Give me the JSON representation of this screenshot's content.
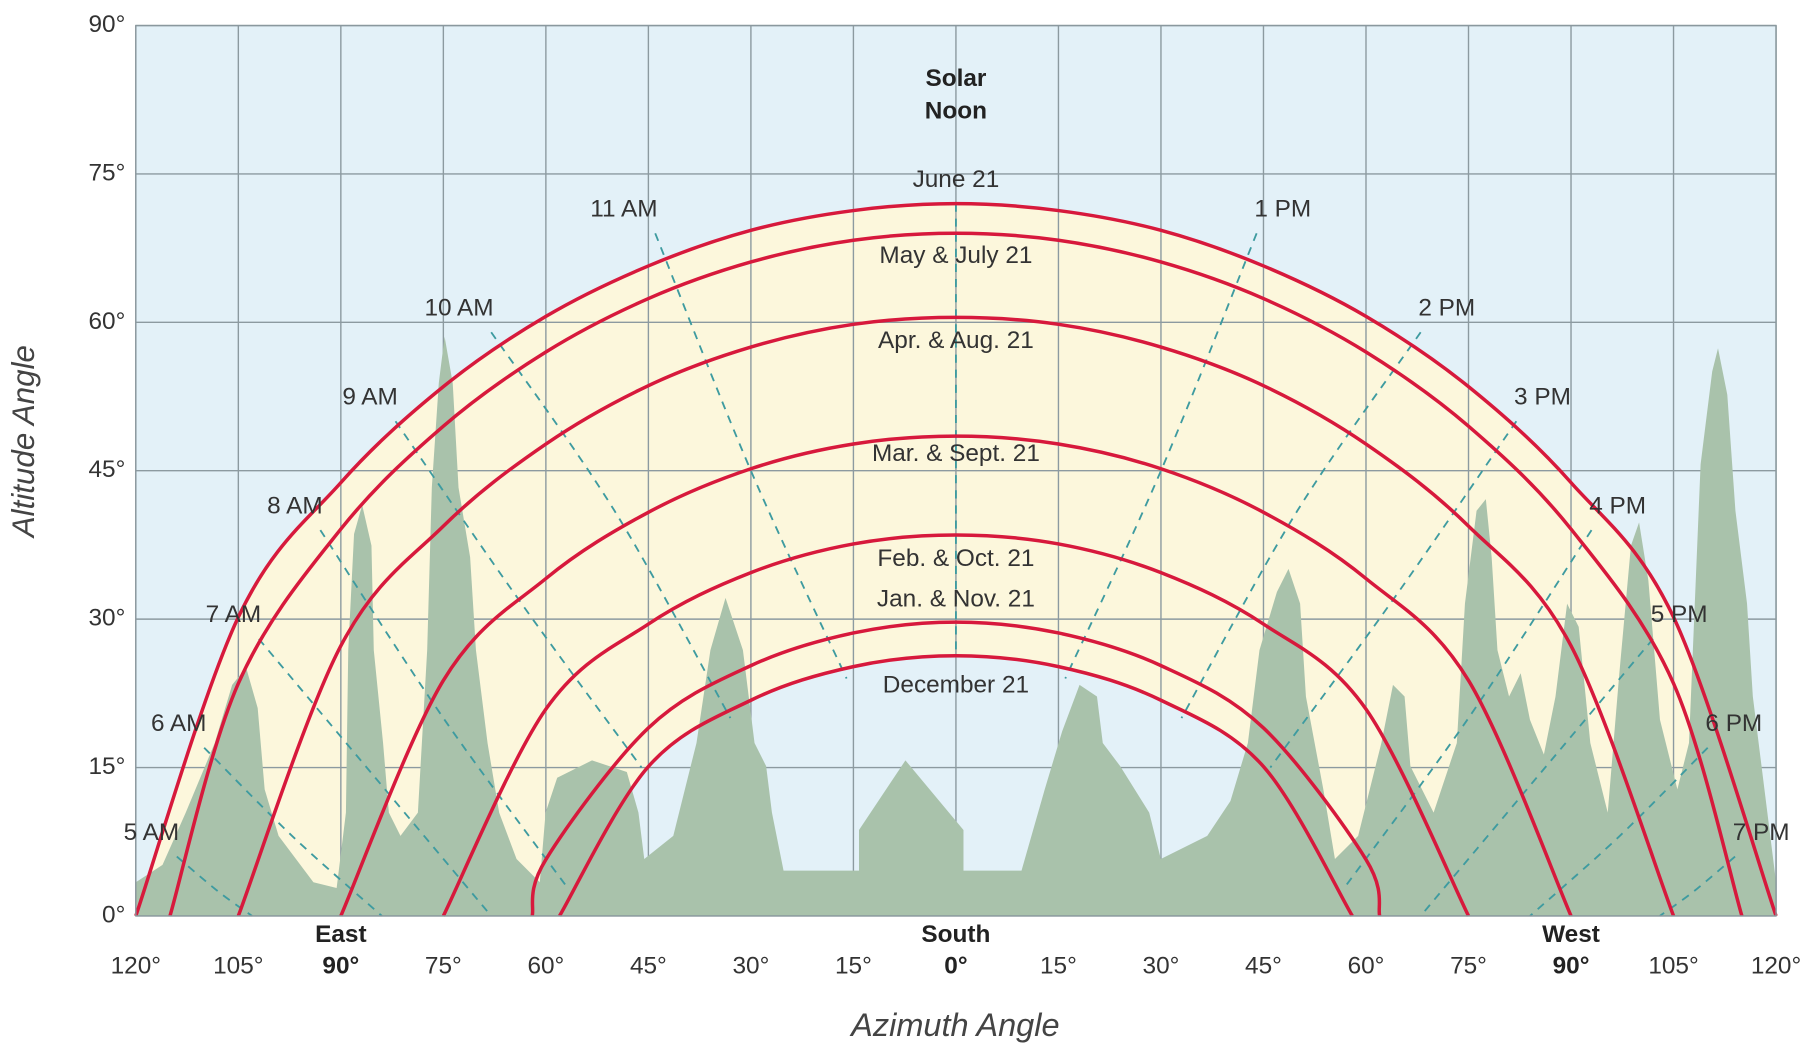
{
  "chart_data": {
    "type": "line",
    "x_label": "Azimuth Angle",
    "y_label": "Altitude Angle",
    "xlim": [
      -120,
      120
    ],
    "ylim": [
      0,
      90
    ],
    "xticks": [
      {
        "value": -120,
        "label": "120°"
      },
      {
        "value": -105,
        "label": "105°"
      },
      {
        "value": -90,
        "label": "90°"
      },
      {
        "value": -75,
        "label": "75°"
      },
      {
        "value": -60,
        "label": "60°"
      },
      {
        "value": -45,
        "label": "45°"
      },
      {
        "value": -30,
        "label": "30°"
      },
      {
        "value": -15,
        "label": "15°"
      },
      {
        "value": 0,
        "label": "0°"
      },
      {
        "value": 15,
        "label": "15°"
      },
      {
        "value": 30,
        "label": "30°"
      },
      {
        "value": 45,
        "label": "45°"
      },
      {
        "value": 60,
        "label": "60°"
      },
      {
        "value": 75,
        "label": "75°"
      },
      {
        "value": 90,
        "label": "90°"
      },
      {
        "value": 105,
        "label": "105°"
      },
      {
        "value": 120,
        "label": "120°"
      }
    ],
    "yticks": [
      {
        "value": 0,
        "label": "0°"
      },
      {
        "value": 15,
        "label": "15°"
      },
      {
        "value": 30,
        "label": "30°"
      },
      {
        "value": 45,
        "label": "45°"
      },
      {
        "value": 60,
        "label": "60°"
      },
      {
        "value": 75,
        "label": "75°"
      },
      {
        "value": 90,
        "label": "90°"
      }
    ],
    "x_annotations": [
      {
        "value": -90,
        "label": "East"
      },
      {
        "value": 0,
        "label": "South"
      },
      {
        "value": 90,
        "label": "West"
      }
    ],
    "grid": true,
    "series": [
      {
        "name": "June 21",
        "color": "#d7193c",
        "line_style": "solid",
        "x": [
          -120,
          -105,
          -90,
          -75,
          -60,
          -45,
          -30,
          -15,
          0,
          15,
          30,
          45,
          60,
          75,
          90,
          105,
          120
        ],
        "values": [
          0,
          30.2,
          43.8,
          53.5,
          60.6,
          65.7,
          69.3,
          71.3,
          72,
          71.3,
          69.3,
          65.7,
          60.6,
          53.5,
          43.8,
          30.2,
          0
        ]
      },
      {
        "name": "May & July 21",
        "color": "#d7193c",
        "line_style": "solid",
        "x": [
          -115,
          -105,
          -90,
          -75,
          -60,
          -45,
          -30,
          -15,
          0,
          15,
          30,
          45,
          60,
          75,
          90,
          105,
          115
        ],
        "values": [
          0,
          23.5,
          39.1,
          49.5,
          57,
          62.4,
          66.1,
          68.3,
          69,
          68.3,
          66.1,
          62.4,
          57,
          49.5,
          39.1,
          23.5,
          0
        ]
      },
      {
        "name": "Apr. & Aug. 21",
        "color": "#d7193c",
        "line_style": "solid",
        "x": [
          -105,
          -90,
          -75,
          -60,
          -45,
          -30,
          -15,
          0,
          15,
          30,
          45,
          60,
          75,
          90,
          105
        ],
        "values": [
          0,
          27.3,
          39.4,
          47.7,
          53.6,
          57.5,
          59.8,
          60.5,
          59.8,
          57.5,
          53.6,
          47.7,
          39.4,
          27.3,
          0
        ]
      },
      {
        "name": "Mar. & Sept. 21",
        "color": "#d7193c",
        "line_style": "solid",
        "x": [
          -90,
          -75,
          -60,
          -45,
          -30,
          -15,
          0,
          15,
          30,
          45,
          60,
          75,
          90
        ],
        "values": [
          0,
          23.8,
          34.1,
          40.8,
          45.2,
          47.7,
          48.5,
          47.7,
          45.2,
          40.8,
          34.1,
          23.8,
          0
        ]
      },
      {
        "name": "Feb. & Oct. 21",
        "color": "#d7193c",
        "line_style": "solid",
        "x": [
          -75,
          -60,
          -45,
          -30,
          -15,
          0,
          15,
          30,
          45,
          60,
          75
        ],
        "values": [
          0,
          20.9,
          29.5,
          34.7,
          37.6,
          38.5,
          37.6,
          34.7,
          29.5,
          20.9,
          0
        ]
      },
      {
        "name": "Jan. & Nov. 21",
        "color": "#d7193c",
        "line_style": "solid",
        "x": [
          -62,
          -60,
          -45,
          -30,
          -15,
          0,
          15,
          30,
          45,
          60,
          62
        ],
        "values": [
          0,
          5.7,
          19,
          25.3,
          28.6,
          29.7,
          28.6,
          25.3,
          19,
          5.7,
          0
        ]
      },
      {
        "name": "December 21",
        "color": "#d7193c",
        "line_style": "solid",
        "x": [
          -58,
          -45,
          -30,
          -15,
          0,
          15,
          30,
          45,
          58
        ],
        "values": [
          0,
          15.1,
          21.8,
          25.2,
          26.3,
          25.2,
          21.8,
          15.1,
          0
        ]
      },
      {
        "name": "5 AM",
        "color": "#3e9ba0",
        "line_style": "dashed",
        "x": [
          -114,
          -108,
          -103
        ],
        "values": [
          6,
          2.5,
          0
        ]
      },
      {
        "name": "6 AM",
        "color": "#3e9ba0",
        "line_style": "dashed",
        "x": [
          -110,
          -97,
          -84
        ],
        "values": [
          17,
          8,
          0
        ]
      },
      {
        "name": "7 AM",
        "color": "#3e9ba0",
        "line_style": "dashed",
        "x": [
          -102,
          -85,
          -68
        ],
        "values": [
          28,
          14,
          0
        ]
      },
      {
        "name": "8 AM",
        "color": "#3e9ba0",
        "line_style": "dashed",
        "x": [
          -93,
          -75,
          -57
        ],
        "values": [
          39,
          20,
          3
        ]
      },
      {
        "name": "9 AM",
        "color": "#3e9ba0",
        "line_style": "dashed",
        "x": [
          -82,
          -64,
          -46
        ],
        "values": [
          50,
          32,
          15
        ]
      },
      {
        "name": "10 AM",
        "color": "#3e9ba0",
        "line_style": "dashed",
        "x": [
          -68,
          -50,
          -33
        ],
        "values": [
          59,
          41,
          20
        ]
      },
      {
        "name": "11 AM",
        "color": "#3e9ba0",
        "line_style": "dashed",
        "x": [
          -44,
          -30,
          -16
        ],
        "values": [
          69,
          45,
          24
        ]
      },
      {
        "name": "Solar Noon",
        "color": "#3e9ba0",
        "line_style": "dashed",
        "x": [
          0,
          0,
          0
        ],
        "values": [
          72,
          48.5,
          26.3
        ]
      },
      {
        "name": "1 PM",
        "color": "#3e9ba0",
        "line_style": "dashed",
        "x": [
          44,
          30,
          16
        ],
        "values": [
          69,
          45,
          24
        ]
      },
      {
        "name": "2 PM",
        "color": "#3e9ba0",
        "line_style": "dashed",
        "x": [
          68,
          50,
          33
        ],
        "values": [
          59,
          41,
          20
        ]
      },
      {
        "name": "3 PM",
        "color": "#3e9ba0",
        "line_style": "dashed",
        "x": [
          82,
          64,
          46
        ],
        "values": [
          50,
          32,
          15
        ]
      },
      {
        "name": "4 PM",
        "color": "#3e9ba0",
        "line_style": "dashed",
        "x": [
          93,
          75,
          57
        ],
        "values": [
          39,
          20,
          3
        ]
      },
      {
        "name": "5 PM",
        "color": "#3e9ba0",
        "line_style": "dashed",
        "x": [
          102,
          85,
          68
        ],
        "values": [
          28,
          14,
          0
        ]
      },
      {
        "name": "6 PM",
        "color": "#3e9ba0",
        "line_style": "dashed",
        "x": [
          110,
          97,
          84
        ],
        "values": [
          17,
          8,
          0
        ]
      },
      {
        "name": "7 PM",
        "color": "#3e9ba0",
        "line_style": "dashed",
        "x": [
          114,
          108,
          103
        ],
        "values": [
          6,
          2.5,
          0
        ]
      }
    ]
  }
}
